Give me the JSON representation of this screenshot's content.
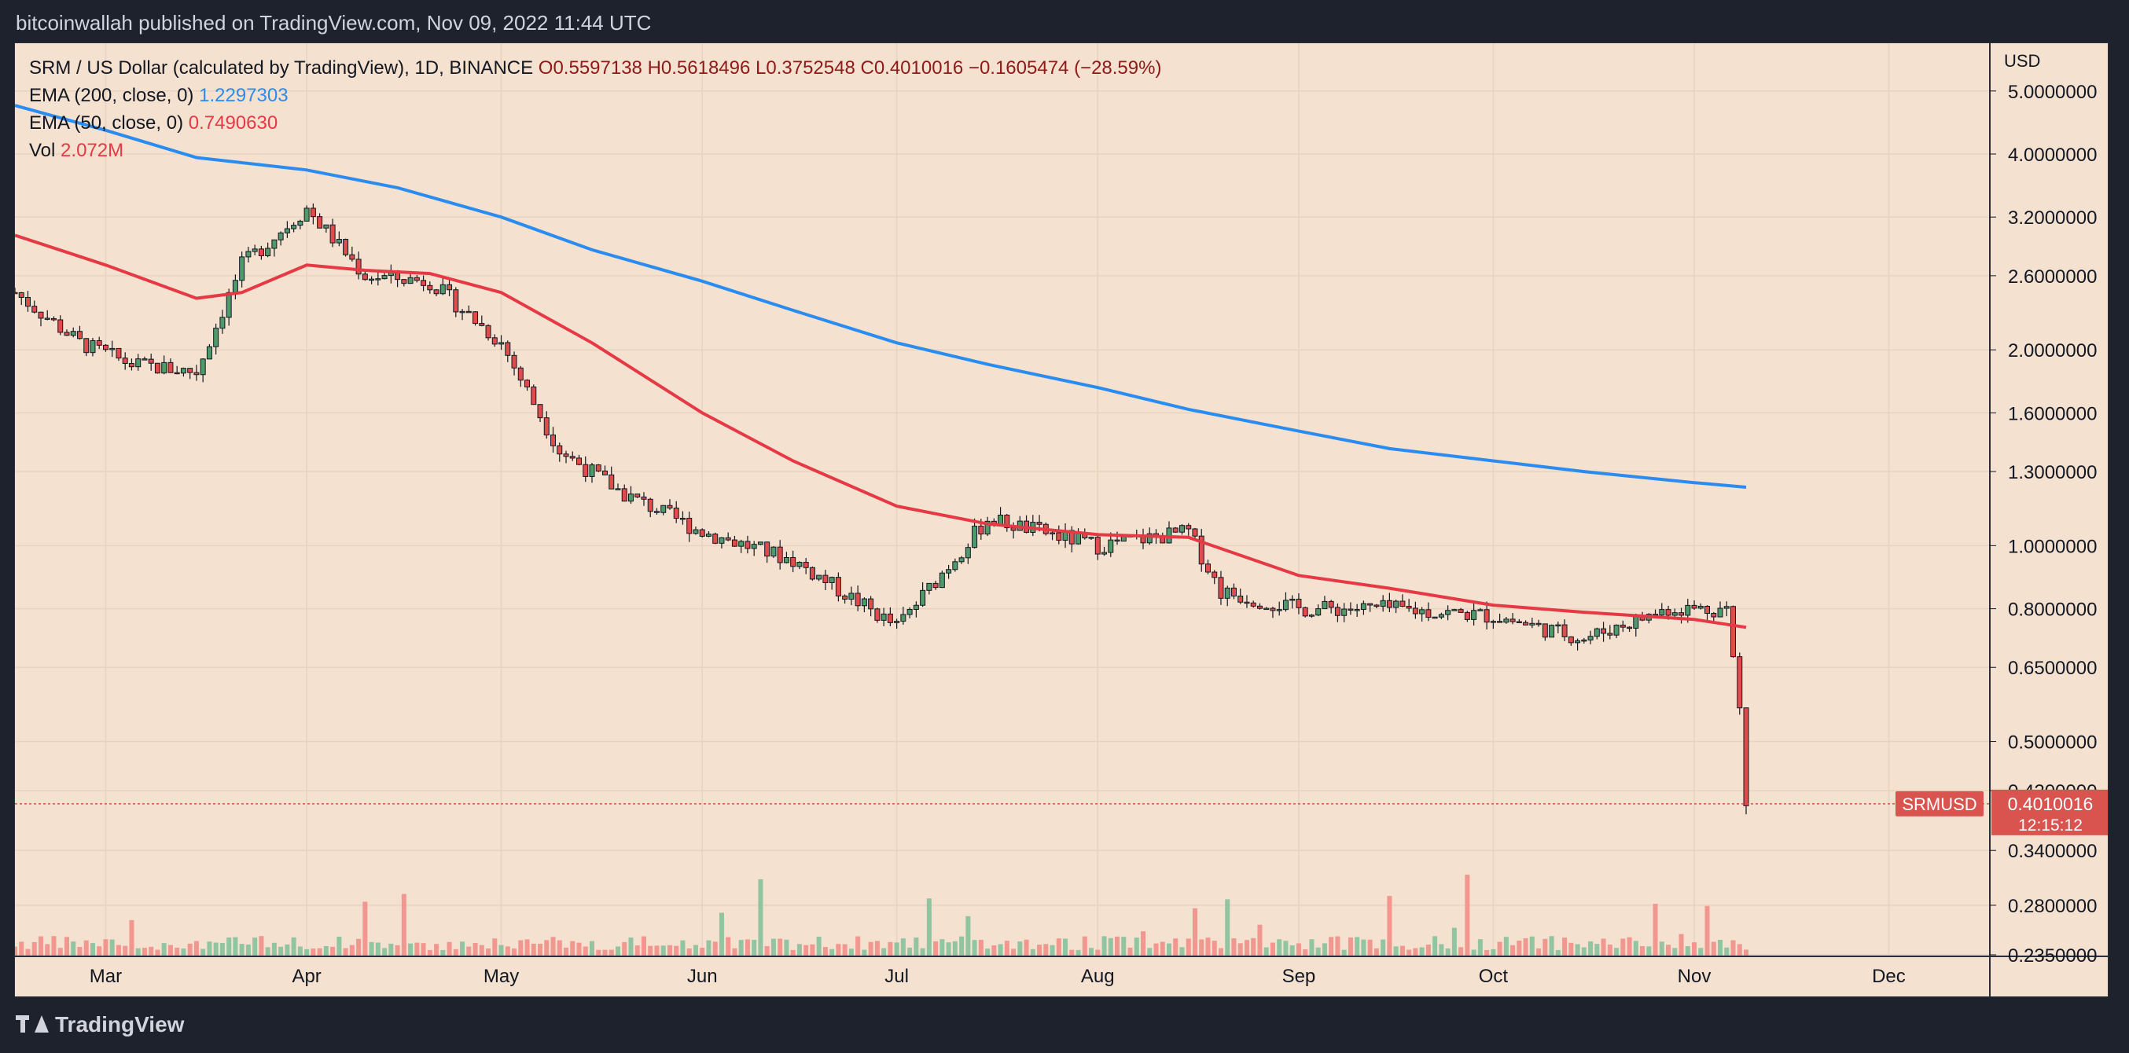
{
  "header": {
    "text": "bitcoinwallah published on TradingView.com, Nov 09, 2022 11:44 UTC"
  },
  "footer": {
    "brand": "TradingView"
  },
  "legend": {
    "symbol": "SRM / US Dollar (calculated by TradingView), 1D, BINANCE",
    "ohlc": "O0.5597138  H0.5618496  L0.3752548  C0.4010016  −0.1605474 (−28.59%)",
    "ema200_label": "EMA (200, close, 0)",
    "ema200_value": "1.2297303",
    "ema50_label": "EMA (50, close, 0)",
    "ema50_value": "0.7490630",
    "vol_label": "Vol",
    "vol_value": "2.072M"
  },
  "price_tag": {
    "symbol": "SRMUSD",
    "value": "0.4010016",
    "countdown": "12:15:12"
  },
  "colors": {
    "background": "#f4e1cf",
    "up": "#4e9a6a",
    "down": "#e04b4b",
    "ema200": "#2a8cf0",
    "ema50": "#e63946"
  },
  "chart_data": {
    "type": "line",
    "scale": "log",
    "axis_unit": "USD",
    "y_ticks": [
      "5.0000000",
      "4.0000000",
      "3.2000000",
      "2.6000000",
      "2.0000000",
      "1.6000000",
      "1.3000000",
      "1.0000000",
      "0.8000000",
      "0.6500000",
      "0.5000000",
      "0.4200000",
      "0.3400000",
      "0.2800000",
      "0.2350000"
    ],
    "x_ticks": [
      "Mar",
      "Apr",
      "May",
      "Jun",
      "Jul",
      "Aug",
      "Sep",
      "Oct",
      "Nov",
      "Dec"
    ],
    "series": [
      {
        "name": "EMA (200, close, 0)",
        "points": [
          [
            "2022-02-15",
            4.75
          ],
          [
            "2022-03-01",
            4.35
          ],
          [
            "2022-03-15",
            3.95
          ],
          [
            "2022-04-01",
            3.78
          ],
          [
            "2022-04-15",
            3.55
          ],
          [
            "2022-05-01",
            3.2
          ],
          [
            "2022-05-15",
            2.85
          ],
          [
            "2022-06-01",
            2.55
          ],
          [
            "2022-06-15",
            2.3
          ],
          [
            "2022-07-01",
            2.05
          ],
          [
            "2022-07-15",
            1.9
          ],
          [
            "2022-08-01",
            1.75
          ],
          [
            "2022-08-15",
            1.62
          ],
          [
            "2022-09-01",
            1.5
          ],
          [
            "2022-09-15",
            1.41
          ],
          [
            "2022-10-01",
            1.35
          ],
          [
            "2022-10-15",
            1.3
          ],
          [
            "2022-11-01",
            1.25
          ],
          [
            "2022-11-09",
            1.23
          ]
        ]
      },
      {
        "name": "EMA (50, close, 0)",
        "points": [
          [
            "2022-02-15",
            3.0
          ],
          [
            "2022-03-01",
            2.7
          ],
          [
            "2022-03-15",
            2.4
          ],
          [
            "2022-03-22",
            2.45
          ],
          [
            "2022-04-01",
            2.7
          ],
          [
            "2022-04-10",
            2.65
          ],
          [
            "2022-04-20",
            2.62
          ],
          [
            "2022-05-01",
            2.45
          ],
          [
            "2022-05-15",
            2.05
          ],
          [
            "2022-06-01",
            1.6
          ],
          [
            "2022-06-15",
            1.35
          ],
          [
            "2022-07-01",
            1.15
          ],
          [
            "2022-07-15",
            1.08
          ],
          [
            "2022-08-01",
            1.04
          ],
          [
            "2022-08-15",
            1.03
          ],
          [
            "2022-09-01",
            0.9
          ],
          [
            "2022-09-15",
            0.86
          ],
          [
            "2022-10-01",
            0.81
          ],
          [
            "2022-10-15",
            0.79
          ],
          [
            "2022-11-01",
            0.77
          ],
          [
            "2022-11-09",
            0.749
          ]
        ]
      }
    ],
    "candles_summary": {
      "approx_closes": [
        [
          "2022-02-15",
          2.45
        ],
        [
          "2022-02-25",
          2.05
        ],
        [
          "2022-03-05",
          1.9
        ],
        [
          "2022-03-15",
          1.85
        ],
        [
          "2022-03-22",
          2.7
        ],
        [
          "2022-04-01",
          3.3
        ],
        [
          "2022-04-10",
          2.6
        ],
        [
          "2022-04-20",
          2.55
        ],
        [
          "2022-05-01",
          2.05
        ],
        [
          "2022-05-10",
          1.4
        ],
        [
          "2022-05-20",
          1.2
        ],
        [
          "2022-06-01",
          1.05
        ],
        [
          "2022-06-15",
          0.95
        ],
        [
          "2022-07-01",
          0.75
        ],
        [
          "2022-07-15",
          1.1
        ],
        [
          "2022-08-01",
          1.0
        ],
        [
          "2022-08-15",
          1.05
        ],
        [
          "2022-08-20",
          0.85
        ],
        [
          "2022-09-01",
          0.8
        ],
        [
          "2022-09-15",
          0.8
        ],
        [
          "2022-10-01",
          0.78
        ],
        [
          "2022-10-15",
          0.72
        ],
        [
          "2022-10-28",
          0.8
        ],
        [
          "2022-11-06",
          0.8
        ],
        [
          "2022-11-08",
          0.56
        ],
        [
          "2022-11-09",
          0.401
        ]
      ]
    },
    "last_close": 0.4010016
  }
}
